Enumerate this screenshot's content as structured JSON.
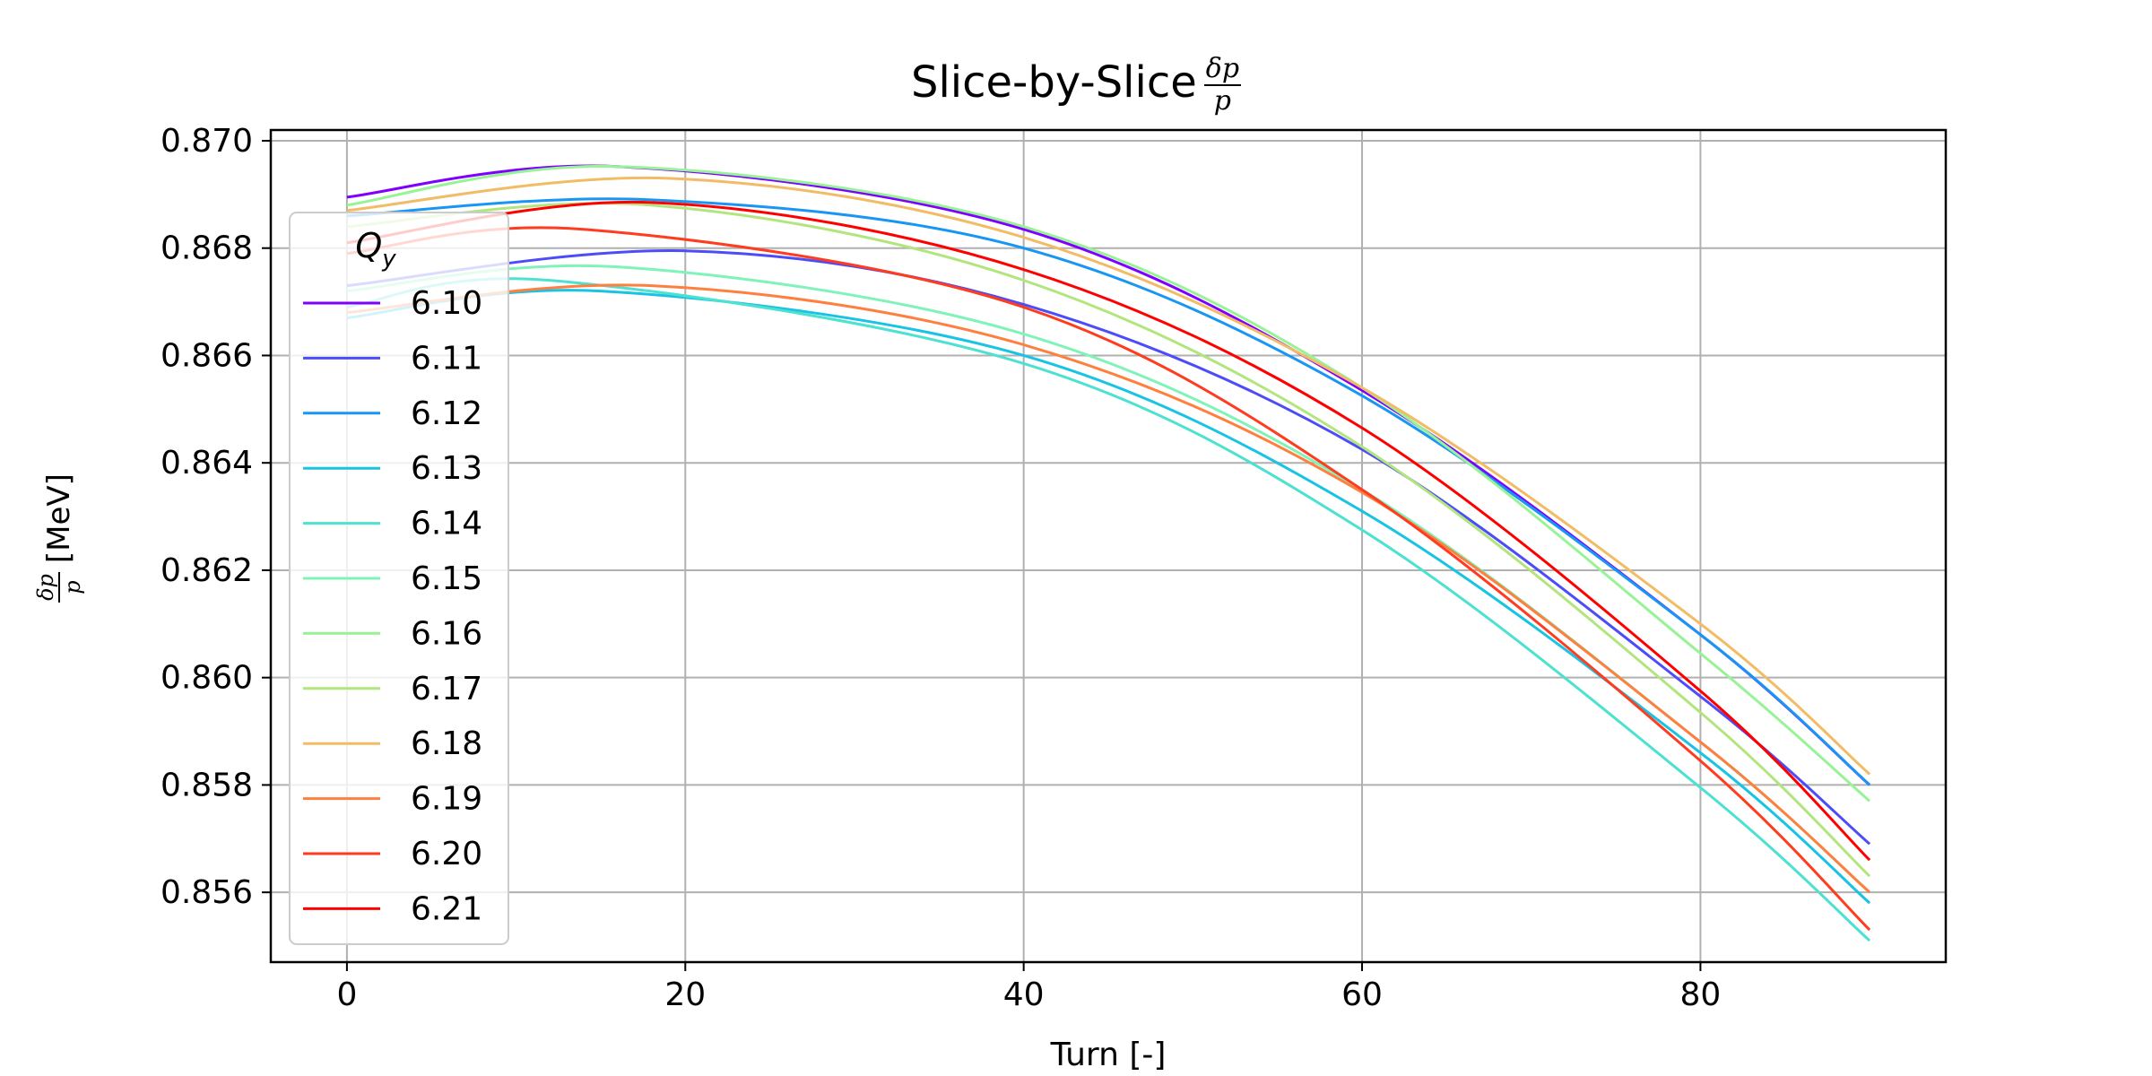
{
  "title_prefix": "Slice-by-Slice",
  "title_fraction": {
    "numerator": "δp",
    "denominator": "p"
  },
  "ylabel_fraction": {
    "numerator": "δp",
    "denominator": "p"
  },
  "ylabel_unit": "[MeV]",
  "chart_data": {
    "type": "line",
    "xlabel": "Turn [-]",
    "xlim": [
      -4.5,
      94.5
    ],
    "ylim": [
      0.8547,
      0.8702
    ],
    "xticks": [
      0,
      20,
      40,
      60,
      80
    ],
    "yticks": [
      0.856,
      0.858,
      0.86,
      0.862,
      0.864,
      0.866,
      0.868,
      0.87
    ],
    "ytick_labels": [
      "0.856",
      "0.858",
      "0.860",
      "0.862",
      "0.864",
      "0.866",
      "0.868",
      "0.870"
    ],
    "grid": true,
    "legend": {
      "title_symbol": "Q",
      "title_subscript": "y",
      "placement": "left"
    },
    "series": [
      {
        "name": "6.10",
        "color": "#7f00ff",
        "x": [
          0,
          16,
          40,
          60,
          80,
          90
        ],
        "y": [
          0.86895,
          0.86952,
          0.86835,
          0.86535,
          0.8608,
          0.858
        ]
      },
      {
        "name": "6.11",
        "color": "#4c4cf9",
        "x": [
          0,
          20,
          40,
          60,
          80,
          90
        ],
        "y": [
          0.8673,
          0.86795,
          0.86695,
          0.86425,
          0.85965,
          0.8569
        ]
      },
      {
        "name": "6.12",
        "color": "#1996f3",
        "x": [
          0,
          18,
          40,
          60,
          80,
          90
        ],
        "y": [
          0.8686,
          0.8689,
          0.868,
          0.86525,
          0.8608,
          0.858
        ]
      },
      {
        "name": "6.13",
        "color": "#19c3e4",
        "x": [
          0,
          15,
          40,
          60,
          80,
          90
        ],
        "y": [
          0.8667,
          0.8672,
          0.866,
          0.8631,
          0.8586,
          0.8558
        ]
      },
      {
        "name": "6.14",
        "color": "#4ce1d0",
        "x": [
          0,
          12,
          40,
          60,
          80,
          90
        ],
        "y": [
          0.8669,
          0.8674,
          0.86585,
          0.86275,
          0.85795,
          0.8551
        ]
      },
      {
        "name": "6.15",
        "color": "#7ff3b9",
        "x": [
          0,
          16,
          40,
          60,
          80,
          90
        ],
        "y": [
          0.8672,
          0.86765,
          0.8664,
          0.8635,
          0.8588,
          0.856
        ]
      },
      {
        "name": "6.16",
        "color": "#98f296",
        "x": [
          0,
          16,
          40,
          60,
          80,
          90
        ],
        "y": [
          0.8688,
          0.86952,
          0.8684,
          0.8654,
          0.86045,
          0.8577
        ]
      },
      {
        "name": "6.17",
        "color": "#b2e57e",
        "x": [
          0,
          18,
          40,
          60,
          80,
          90
        ],
        "y": [
          0.8684,
          0.8688,
          0.8674,
          0.8643,
          0.85935,
          0.8563
        ]
      },
      {
        "name": "6.18",
        "color": "#f2bc66",
        "x": [
          0,
          19,
          40,
          60,
          80,
          90
        ],
        "y": [
          0.8687,
          0.8693,
          0.8682,
          0.8654,
          0.861,
          0.8582
        ]
      },
      {
        "name": "6.19",
        "color": "#ff7f3f",
        "x": [
          0,
          18,
          40,
          60,
          80,
          90
        ],
        "y": [
          0.8668,
          0.8673,
          0.8662,
          0.86345,
          0.8588,
          0.856
        ]
      },
      {
        "name": "6.20",
        "color": "#ff3c1f",
        "x": [
          0,
          14,
          40,
          60,
          80,
          90
        ],
        "y": [
          0.8679,
          0.86835,
          0.8669,
          0.8635,
          0.85845,
          0.8553
        ]
      },
      {
        "name": "6.21",
        "color": "#ff0000",
        "x": [
          0,
          18,
          40,
          60,
          80,
          90
        ],
        "y": [
          0.8681,
          0.86885,
          0.8676,
          0.86465,
          0.85975,
          0.8566
        ]
      }
    ]
  }
}
